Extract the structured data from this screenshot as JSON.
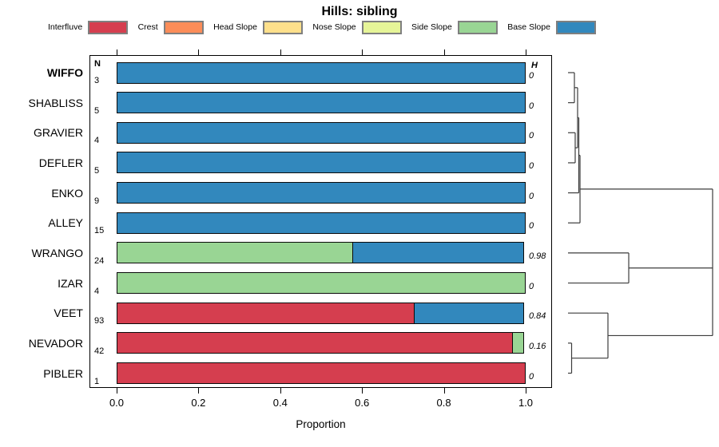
{
  "title": "Hills: sibling",
  "columns": {
    "n_header": "N",
    "h_header": "H"
  },
  "axis": {
    "label": "Proportion",
    "ticks": [
      "0.0",
      "0.2",
      "0.4",
      "0.6",
      "0.8",
      "1.0"
    ]
  },
  "legend": {
    "items": [
      "Interfluve",
      "Crest",
      "Head Slope",
      "Nose Slope",
      "Side Slope",
      "Base Slope"
    ]
  },
  "chart_data": {
    "type": "bar",
    "stacked": true,
    "orientation": "horizontal",
    "title": "Hills: sibling",
    "xlabel": "Proportion",
    "xlim": [
      0,
      1
    ],
    "grid": false,
    "categories": [
      "Interfluve",
      "Crest",
      "Head Slope",
      "Nose Slope",
      "Side Slope",
      "Base Slope"
    ],
    "colors": {
      "Interfluve": "#D53E4F",
      "Crest": "#FC8D59",
      "Head Slope": "#FEE08B",
      "Nose Slope": "#E6F598",
      "Side Slope": "#99D594",
      "Base Slope": "#3288BD"
    },
    "rows": [
      {
        "label": "WIFFO",
        "bold": true,
        "n": "3",
        "h": "0",
        "segments": [
          {
            "cat": "Base Slope",
            "value": 1.0
          }
        ]
      },
      {
        "label": "SHABLISS",
        "bold": false,
        "n": "5",
        "h": "0",
        "segments": [
          {
            "cat": "Base Slope",
            "value": 1.0
          }
        ]
      },
      {
        "label": "GRAVIER",
        "bold": false,
        "n": "4",
        "h": "0",
        "segments": [
          {
            "cat": "Base Slope",
            "value": 1.0
          }
        ]
      },
      {
        "label": "DEFLER",
        "bold": false,
        "n": "5",
        "h": "0",
        "segments": [
          {
            "cat": "Base Slope",
            "value": 1.0
          }
        ]
      },
      {
        "label": "ENKO",
        "bold": false,
        "n": "9",
        "h": "0",
        "segments": [
          {
            "cat": "Base Slope",
            "value": 1.0
          }
        ]
      },
      {
        "label": "ALLEY",
        "bold": false,
        "n": "15",
        "h": "0",
        "segments": [
          {
            "cat": "Base Slope",
            "value": 1.0
          }
        ]
      },
      {
        "label": "WRANGO",
        "bold": false,
        "n": "24",
        "h": "0.98",
        "segments": [
          {
            "cat": "Side Slope",
            "value": 0.58
          },
          {
            "cat": "Base Slope",
            "value": 0.42
          }
        ]
      },
      {
        "label": "IZAR",
        "bold": false,
        "n": "4",
        "h": "0",
        "segments": [
          {
            "cat": "Side Slope",
            "value": 1.0
          }
        ]
      },
      {
        "label": "VEET",
        "bold": false,
        "n": "93",
        "h": "0.84",
        "segments": [
          {
            "cat": "Interfluve",
            "value": 0.73
          },
          {
            "cat": "Base Slope",
            "value": 0.27
          }
        ]
      },
      {
        "label": "NEVADOR",
        "bold": false,
        "n": "42",
        "h": "0.16",
        "segments": [
          {
            "cat": "Interfluve",
            "value": 0.97
          },
          {
            "cat": "Side Slope",
            "value": 0.03
          }
        ]
      },
      {
        "label": "PIBLER",
        "bold": false,
        "n": "1",
        "h": "0",
        "segments": [
          {
            "cat": "Interfluve",
            "value": 1.0
          }
        ]
      }
    ],
    "dendrogram": {
      "note": "right-side cluster tree; h = merge height normalized 0..1",
      "tree": {
        "h": 1.0,
        "children": [
          {
            "h": 0.083,
            "children": [
              {
                "h": 0.0746,
                "children": [
                  {
                    "h": 0.0663,
                    "children": [
                      {
                        "h": 0.0442,
                        "children": [
                          {
                            "leaf": 0
                          },
                          {
                            "leaf": 1
                          }
                        ]
                      },
                      {
                        "h": 0.0497,
                        "children": [
                          {
                            "leaf": 2
                          },
                          {
                            "leaf": 3
                          }
                        ]
                      }
                    ]
                  },
                  {
                    "leaf": 4
                  }
                ]
              },
              {
                "leaf": 5
              }
            ]
          },
          {
            "h": 0.42,
            "children": [
              {
                "leaf": 6
              },
              {
                "leaf": 7
              }
            ]
          },
          {
            "h": 0.2762,
            "children": [
              {
                "leaf": 8
              },
              {
                "h": 0.0249,
                "children": [
                  {
                    "leaf": 9
                  },
                  {
                    "leaf": 10
                  }
                ]
              }
            ]
          }
        ]
      }
    }
  }
}
